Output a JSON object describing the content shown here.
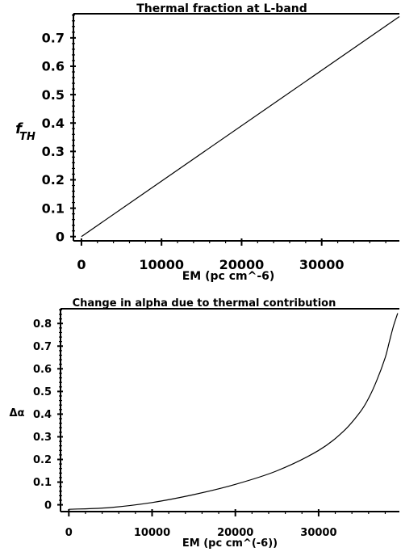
{
  "chart_data": [
    {
      "type": "line",
      "title": "Thermal fraction at L-band",
      "xlabel": "EM (pc cm^-6)",
      "ylabel": "f",
      "ylabel_subscript": "TH",
      "xlim": [
        -1000,
        39700
      ],
      "ylim": [
        -0.015,
        0.785
      ],
      "xticks": [
        0,
        10000,
        20000,
        30000
      ],
      "yticks": [
        0,
        0.1,
        0.2,
        0.3,
        0.4,
        0.5,
        0.6,
        0.7
      ],
      "xtick_labels": [
        "0",
        "10000",
        "20000",
        "30000"
      ],
      "ytick_labels": [
        "0",
        "0.1",
        "0.2",
        "0.3",
        "0.4",
        "0.5",
        "0.6",
        "0.7"
      ],
      "grid": false,
      "series": [
        {
          "x": [
            0,
            39700
          ],
          "y": [
            0,
            0.775
          ]
        }
      ]
    },
    {
      "type": "line",
      "title": "Change in alpha due to thermal contribution",
      "xlabel": "EM (pc cm^(-6))",
      "ylabel": "Δα",
      "xlim": [
        -1000,
        39700
      ],
      "ylim": [
        -0.03,
        0.865
      ],
      "xticks": [
        0,
        10000,
        20000,
        30000
      ],
      "yticks": [
        0,
        0.1,
        0.2,
        0.3,
        0.4,
        0.5,
        0.6,
        0.7,
        0.8
      ],
      "xtick_labels": [
        "0",
        "10000",
        "20000",
        "30000"
      ],
      "ytick_labels": [
        "0",
        "0.1",
        "0.2",
        "0.3",
        "0.4",
        "0.5",
        "0.6",
        "0.7",
        "0.8"
      ],
      "grid": false,
      "series": [
        {
          "x": [
            0,
            5000,
            10000,
            15000,
            20000,
            25000,
            30000,
            33000,
            35000,
            36000,
            37000,
            38000,
            38500,
            39000,
            39500
          ],
          "y": [
            -0.02,
            -0.012,
            0.01,
            0.045,
            0.09,
            0.15,
            0.24,
            0.325,
            0.41,
            0.47,
            0.55,
            0.65,
            0.72,
            0.79,
            0.845
          ]
        }
      ]
    }
  ]
}
